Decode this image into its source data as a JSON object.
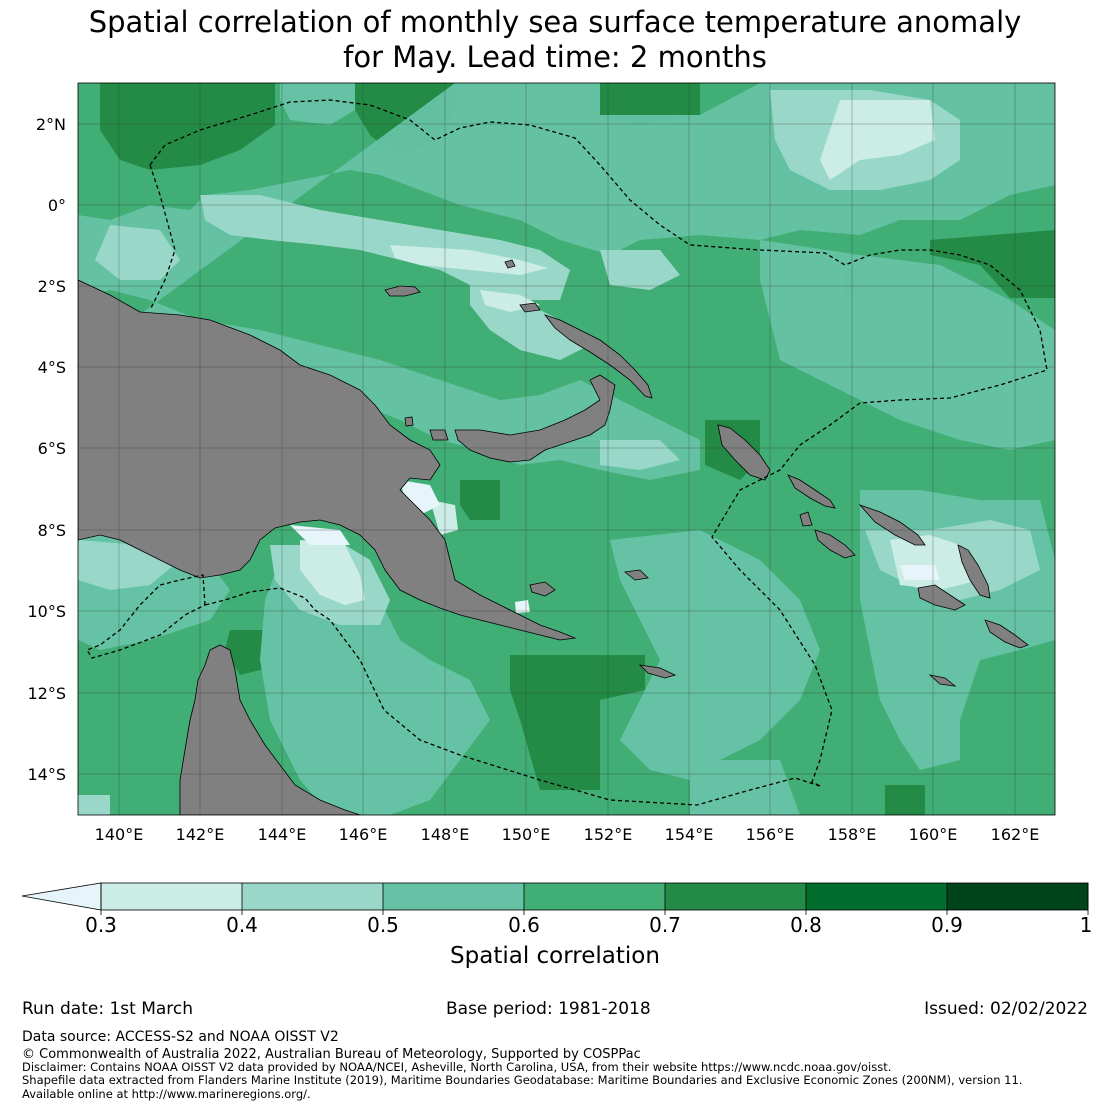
{
  "title": {
    "line1": "Spatial correlation of monthly sea surface temperature anomaly",
    "line2": "for May. Lead time: 2 months"
  },
  "map": {
    "lat_ticks": [
      "2°N",
      "0°",
      "2°S",
      "4°S",
      "6°S",
      "8°S",
      "10°S",
      "12°S",
      "14°S"
    ],
    "lon_ticks": [
      "140°E",
      "142°E",
      "144°E",
      "146°E",
      "148°E",
      "150°E",
      "152°E",
      "154°E",
      "156°E",
      "158°E",
      "160°E",
      "162°E"
    ],
    "land_color": "#808080",
    "grid_color": "#333333"
  },
  "colorbar": {
    "label": "Spatial correlation",
    "ticks": [
      "0.3",
      "0.4",
      "0.5",
      "0.6",
      "0.7",
      "0.8",
      "0.9",
      "1"
    ],
    "colors": [
      "#e5f5f9",
      "#ccece6",
      "#99d8c9",
      "#66c2a4",
      "#41ae76",
      "#238b45",
      "#006d2c",
      "#00441b"
    ],
    "extend": "min"
  },
  "footer": {
    "run_date": "Run date: 1st March",
    "base_period": "Base period: 1981-2018",
    "issued": "Issued: 02/02/2022",
    "data_source": "Data source: ACCESS-S2 and NOAA OISST V2",
    "copyright": "© Commonwealth of Australia 2022, Australian Bureau of Meteorology, Supported by COSPPac",
    "disclaimer": "Disclaimer: Contains NOAA OISST V2 data provided by NOAA/NCEI, Asheville, North Carolina, USA, from their website https://www.ncdc.noaa.gov/oisst.",
    "shapefile_1": "Shapefile data extracted from Flanders Marine Institute (2019), Maritime Boundaries Geodatabase: Maritime Boundaries and Exclusive Economic Zones (200NM), version 11.",
    "shapefile_2": "Available online at http://www.marineregions.org/."
  }
}
